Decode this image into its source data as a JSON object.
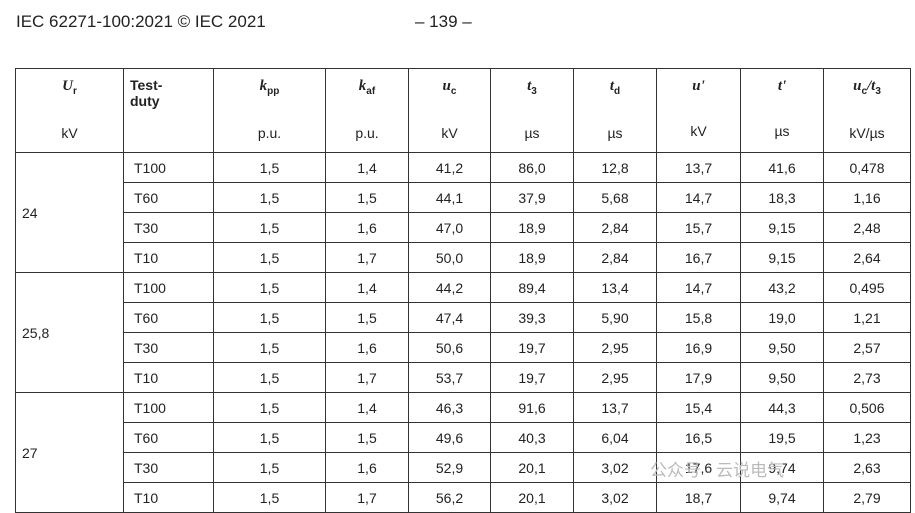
{
  "header": {
    "standard": "IEC 62271-100:2021 © IEC 2021",
    "page": "– 139 –"
  },
  "table": {
    "columns": [
      {
        "label": [
          {
            "sym": "U",
            "sub": "r"
          }
        ],
        "unit": "kV"
      },
      {
        "lines": [
          "Test-",
          "duty"
        ]
      },
      {
        "label": [
          {
            "sym": "k",
            "sub": "pp"
          }
        ],
        "unit": "p.u."
      },
      {
        "label": [
          {
            "sym": "k",
            "sub": "af"
          }
        ],
        "unit": "p.u."
      },
      {
        "label": [
          {
            "sym": "u",
            "sub": "c"
          }
        ],
        "unit": "kV"
      },
      {
        "label": [
          {
            "sym": "t",
            "sub": "3"
          }
        ],
        "unit": "µs"
      },
      {
        "label": [
          {
            "sym": "t",
            "sub": "d"
          }
        ],
        "unit": "µs"
      },
      {
        "label": [
          {
            "sym": "u'"
          }
        ],
        "unit": "kV"
      },
      {
        "label": [
          {
            "sym": "t'"
          }
        ],
        "unit": "µs"
      },
      {
        "label": [
          {
            "sym": "u",
            "sub": "c"
          },
          {
            "sym": "/t",
            "sub": "3"
          }
        ],
        "unit": "kV/µs"
      }
    ],
    "groups": [
      {
        "voltage": "24",
        "rows": [
          [
            "T100",
            "1,5",
            "1,4",
            "41,2",
            "86,0",
            "12,8",
            "13,7",
            "41,6",
            "0,478"
          ],
          [
            "T60",
            "1,5",
            "1,5",
            "44,1",
            "37,9",
            "5,68",
            "14,7",
            "18,3",
            "1,16"
          ],
          [
            "T30",
            "1,5",
            "1,6",
            "47,0",
            "18,9",
            "2,84",
            "15,7",
            "9,15",
            "2,48"
          ],
          [
            "T10",
            "1,5",
            "1,7",
            "50,0",
            "18,9",
            "2,84",
            "16,7",
            "9,15",
            "2,64"
          ]
        ]
      },
      {
        "voltage": "25,8",
        "rows": [
          [
            "T100",
            "1,5",
            "1,4",
            "44,2",
            "89,4",
            "13,4",
            "14,7",
            "43,2",
            "0,495"
          ],
          [
            "T60",
            "1,5",
            "1,5",
            "47,4",
            "39,3",
            "5,90",
            "15,8",
            "19,0",
            "1,21"
          ],
          [
            "T30",
            "1,5",
            "1,6",
            "50,6",
            "19,7",
            "2,95",
            "16,9",
            "9,50",
            "2,57"
          ],
          [
            "T10",
            "1,5",
            "1,7",
            "53,7",
            "19,7",
            "2,95",
            "17,9",
            "9,50",
            "2,73"
          ]
        ]
      },
      {
        "voltage": "27",
        "rows": [
          [
            "T100",
            "1,5",
            "1,4",
            "46,3",
            "91,6",
            "13,7",
            "15,4",
            "44,3",
            "0,506"
          ],
          [
            "T60",
            "1,5",
            "1,5",
            "49,6",
            "40,3",
            "6,04",
            "16,5",
            "19,5",
            "1,23"
          ],
          [
            "T30",
            "1,5",
            "1,6",
            "52,9",
            "20,1",
            "3,02",
            "17,6",
            "9,74",
            "2,63"
          ],
          [
            "T10",
            "1,5",
            "1,7",
            "56,2",
            "20,1",
            "3,02",
            "18,7",
            "9,74",
            "2,79"
          ]
        ]
      }
    ]
  },
  "watermark": "公众号 · 云说电气"
}
